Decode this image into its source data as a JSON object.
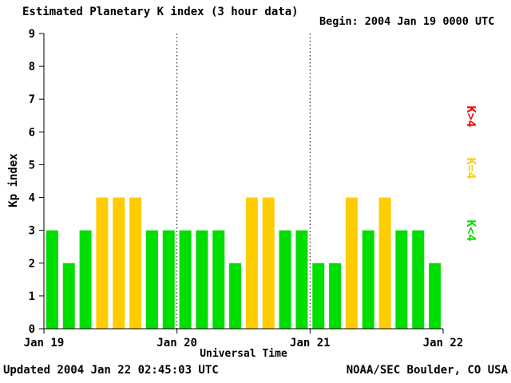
{
  "header": {
    "title": "Estimated Planetary K index (3 hour data)",
    "begin_label": "Begin:",
    "begin_value": "2004 Jan 19 0000 UTC"
  },
  "footer": {
    "updated": "Updated 2004 Jan 22 02:45:03 UTC",
    "source": "NOAA/SEC Boulder, CO USA"
  },
  "chart_data": {
    "type": "bar",
    "title": "Estimated Planetary K index (3 hour data)",
    "xlabel": "Universal Time",
    "ylabel": "Kp index",
    "ylim": [
      0,
      9
    ],
    "yticks": [
      0,
      1,
      2,
      3,
      4,
      5,
      6,
      7,
      8,
      9
    ],
    "xticks": [
      "Jan 19",
      "Jan 20",
      "Jan 21",
      "Jan 22"
    ],
    "bar_interval_hours": 3,
    "values": [
      3,
      2,
      3,
      4,
      4,
      4,
      3,
      3,
      3,
      3,
      3,
      2,
      4,
      4,
      3,
      3,
      2,
      2,
      4,
      3,
      4,
      3,
      3,
      2
    ],
    "colors": {
      "k_lt_4": "#00DD00",
      "k_eq_4": "#FFCC00",
      "k_gt_4": "#FF0000"
    },
    "legend": [
      {
        "label": "K>4",
        "color": "#FF0000"
      },
      {
        "label": "K=4",
        "color": "#FFCC00"
      },
      {
        "label": "K<4",
        "color": "#00DD00"
      }
    ],
    "grid": "dotted vertical lines at day boundaries",
    "legend_position": "right"
  }
}
